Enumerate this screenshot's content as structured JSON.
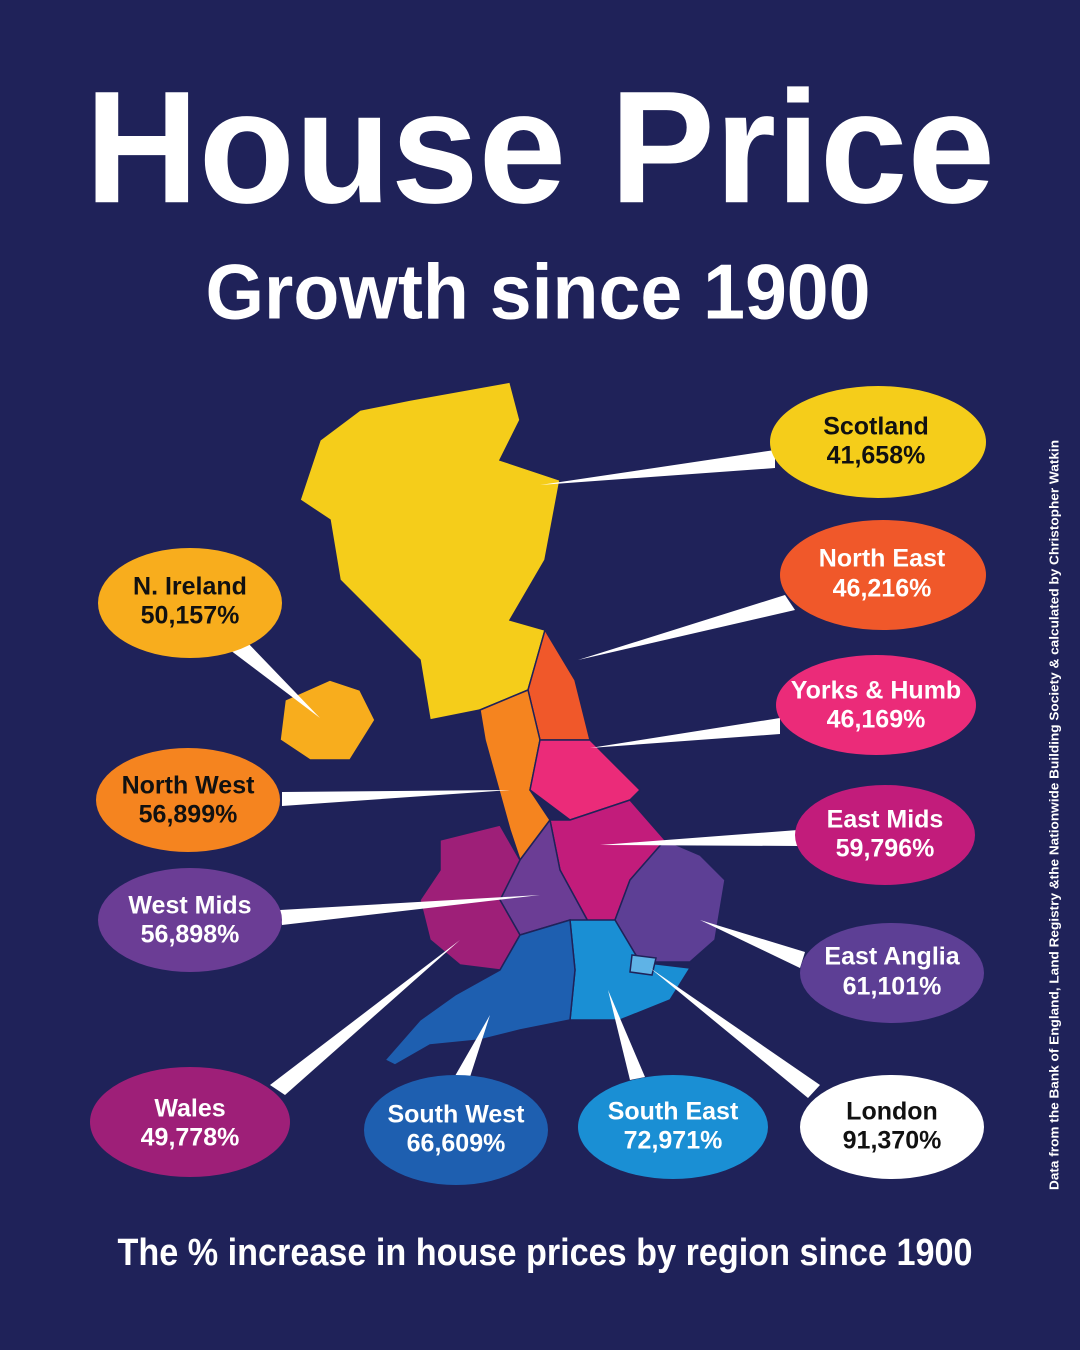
{
  "header": {
    "title": "House Price",
    "subtitle": "Growth since 1900"
  },
  "regions": [
    {
      "name": "Scotland",
      "value": "41,658%"
    },
    {
      "name": "North East",
      "value": "46,216%"
    },
    {
      "name": "Yorks & Humb",
      "value": "46,169%"
    },
    {
      "name": "East Mids",
      "value": "59,796%"
    },
    {
      "name": "East Anglia",
      "value": "61,101%"
    },
    {
      "name": "London",
      "value": "91,370%"
    },
    {
      "name": "South East",
      "value": "72,971%"
    },
    {
      "name": "South West",
      "value": "66,609%"
    },
    {
      "name": "Wales",
      "value": "49,778%"
    },
    {
      "name": "West Mids",
      "value": "56,898%"
    },
    {
      "name": "North West",
      "value": "56,899%"
    },
    {
      "name": "N. Ireland",
      "value": "50,157%"
    }
  ],
  "footer": "The % increase in house prices by region since 1900",
  "source": "Data from the Bank of England, Land Registry &the Nationwide Building Society  & calculated  by Christopher Watkin"
}
